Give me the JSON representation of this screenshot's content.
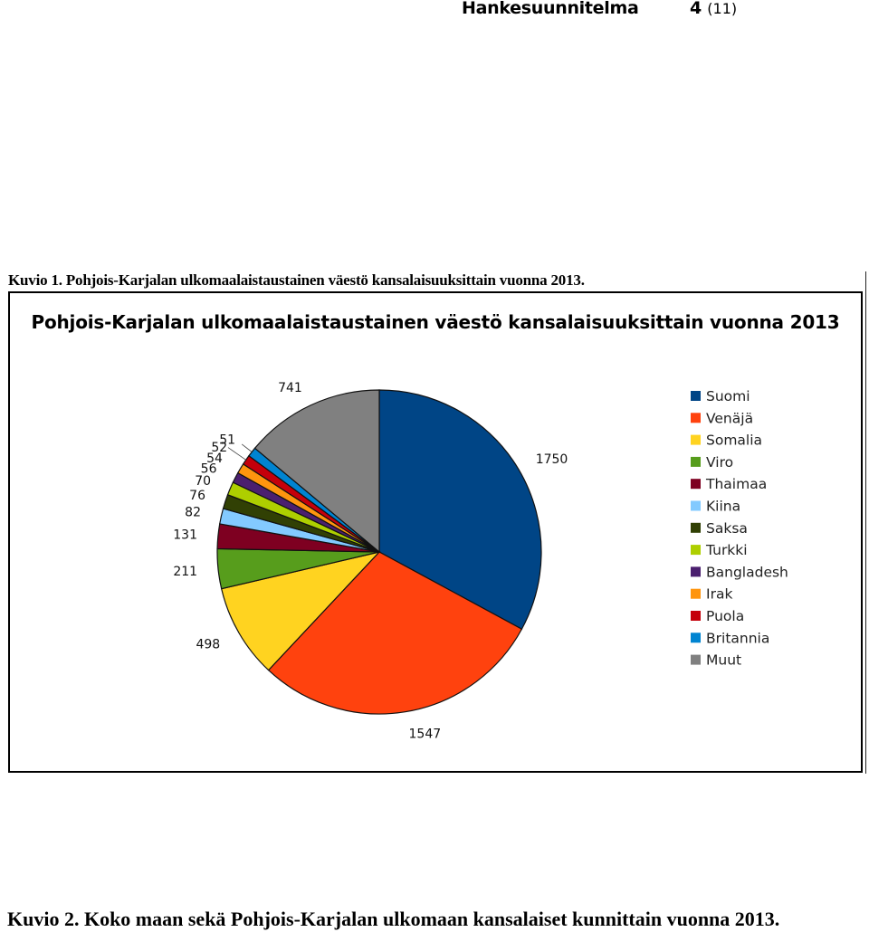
{
  "header": {
    "title": "Hankesuunnitelma",
    "page_number": "4",
    "page_total": "(11)"
  },
  "figure1": {
    "caption": "Kuvio 1. Pohjois-Karjalan ulkomaalaistaustainen väestö kansalaisuuksittain vuonna 2013."
  },
  "figure2": {
    "caption": "Kuvio 2. Koko maan sekä Pohjois-Karjalan ulkomaan kansalaiset kunnittain vuonna 2013."
  },
  "chart_data": {
    "type": "pie",
    "title": "Pohjois-Karjalan ulkomaalaistaustainen väestö kansalaisuuksittain vuonna 2013",
    "legend_position": "right",
    "slices": [
      {
        "name": "Suomi",
        "value": 1750,
        "color": "#004586"
      },
      {
        "name": "Venäjä",
        "value": 1547,
        "color": "#ff420e"
      },
      {
        "name": "Somalia",
        "value": 498,
        "color": "#ffd320"
      },
      {
        "name": "Viro",
        "value": 211,
        "color": "#579d1c"
      },
      {
        "name": "Thaimaa",
        "value": 131,
        "color": "#7e0021"
      },
      {
        "name": "Kiina",
        "value": 82,
        "color": "#83caff"
      },
      {
        "name": "Saksa",
        "value": 76,
        "color": "#314004"
      },
      {
        "name": "Turkki",
        "value": 70,
        "color": "#aecf00"
      },
      {
        "name": "Bangladesh",
        "value": 56,
        "color": "#4b1f6f"
      },
      {
        "name": "Irak",
        "value": 54,
        "color": "#ff950e"
      },
      {
        "name": "Puola",
        "value": 52,
        "color": "#c5000b"
      },
      {
        "name": "Britannia",
        "value": 51,
        "color": "#0084d1"
      },
      {
        "name": "Muut",
        "value": 741,
        "color": "#808080"
      }
    ]
  }
}
